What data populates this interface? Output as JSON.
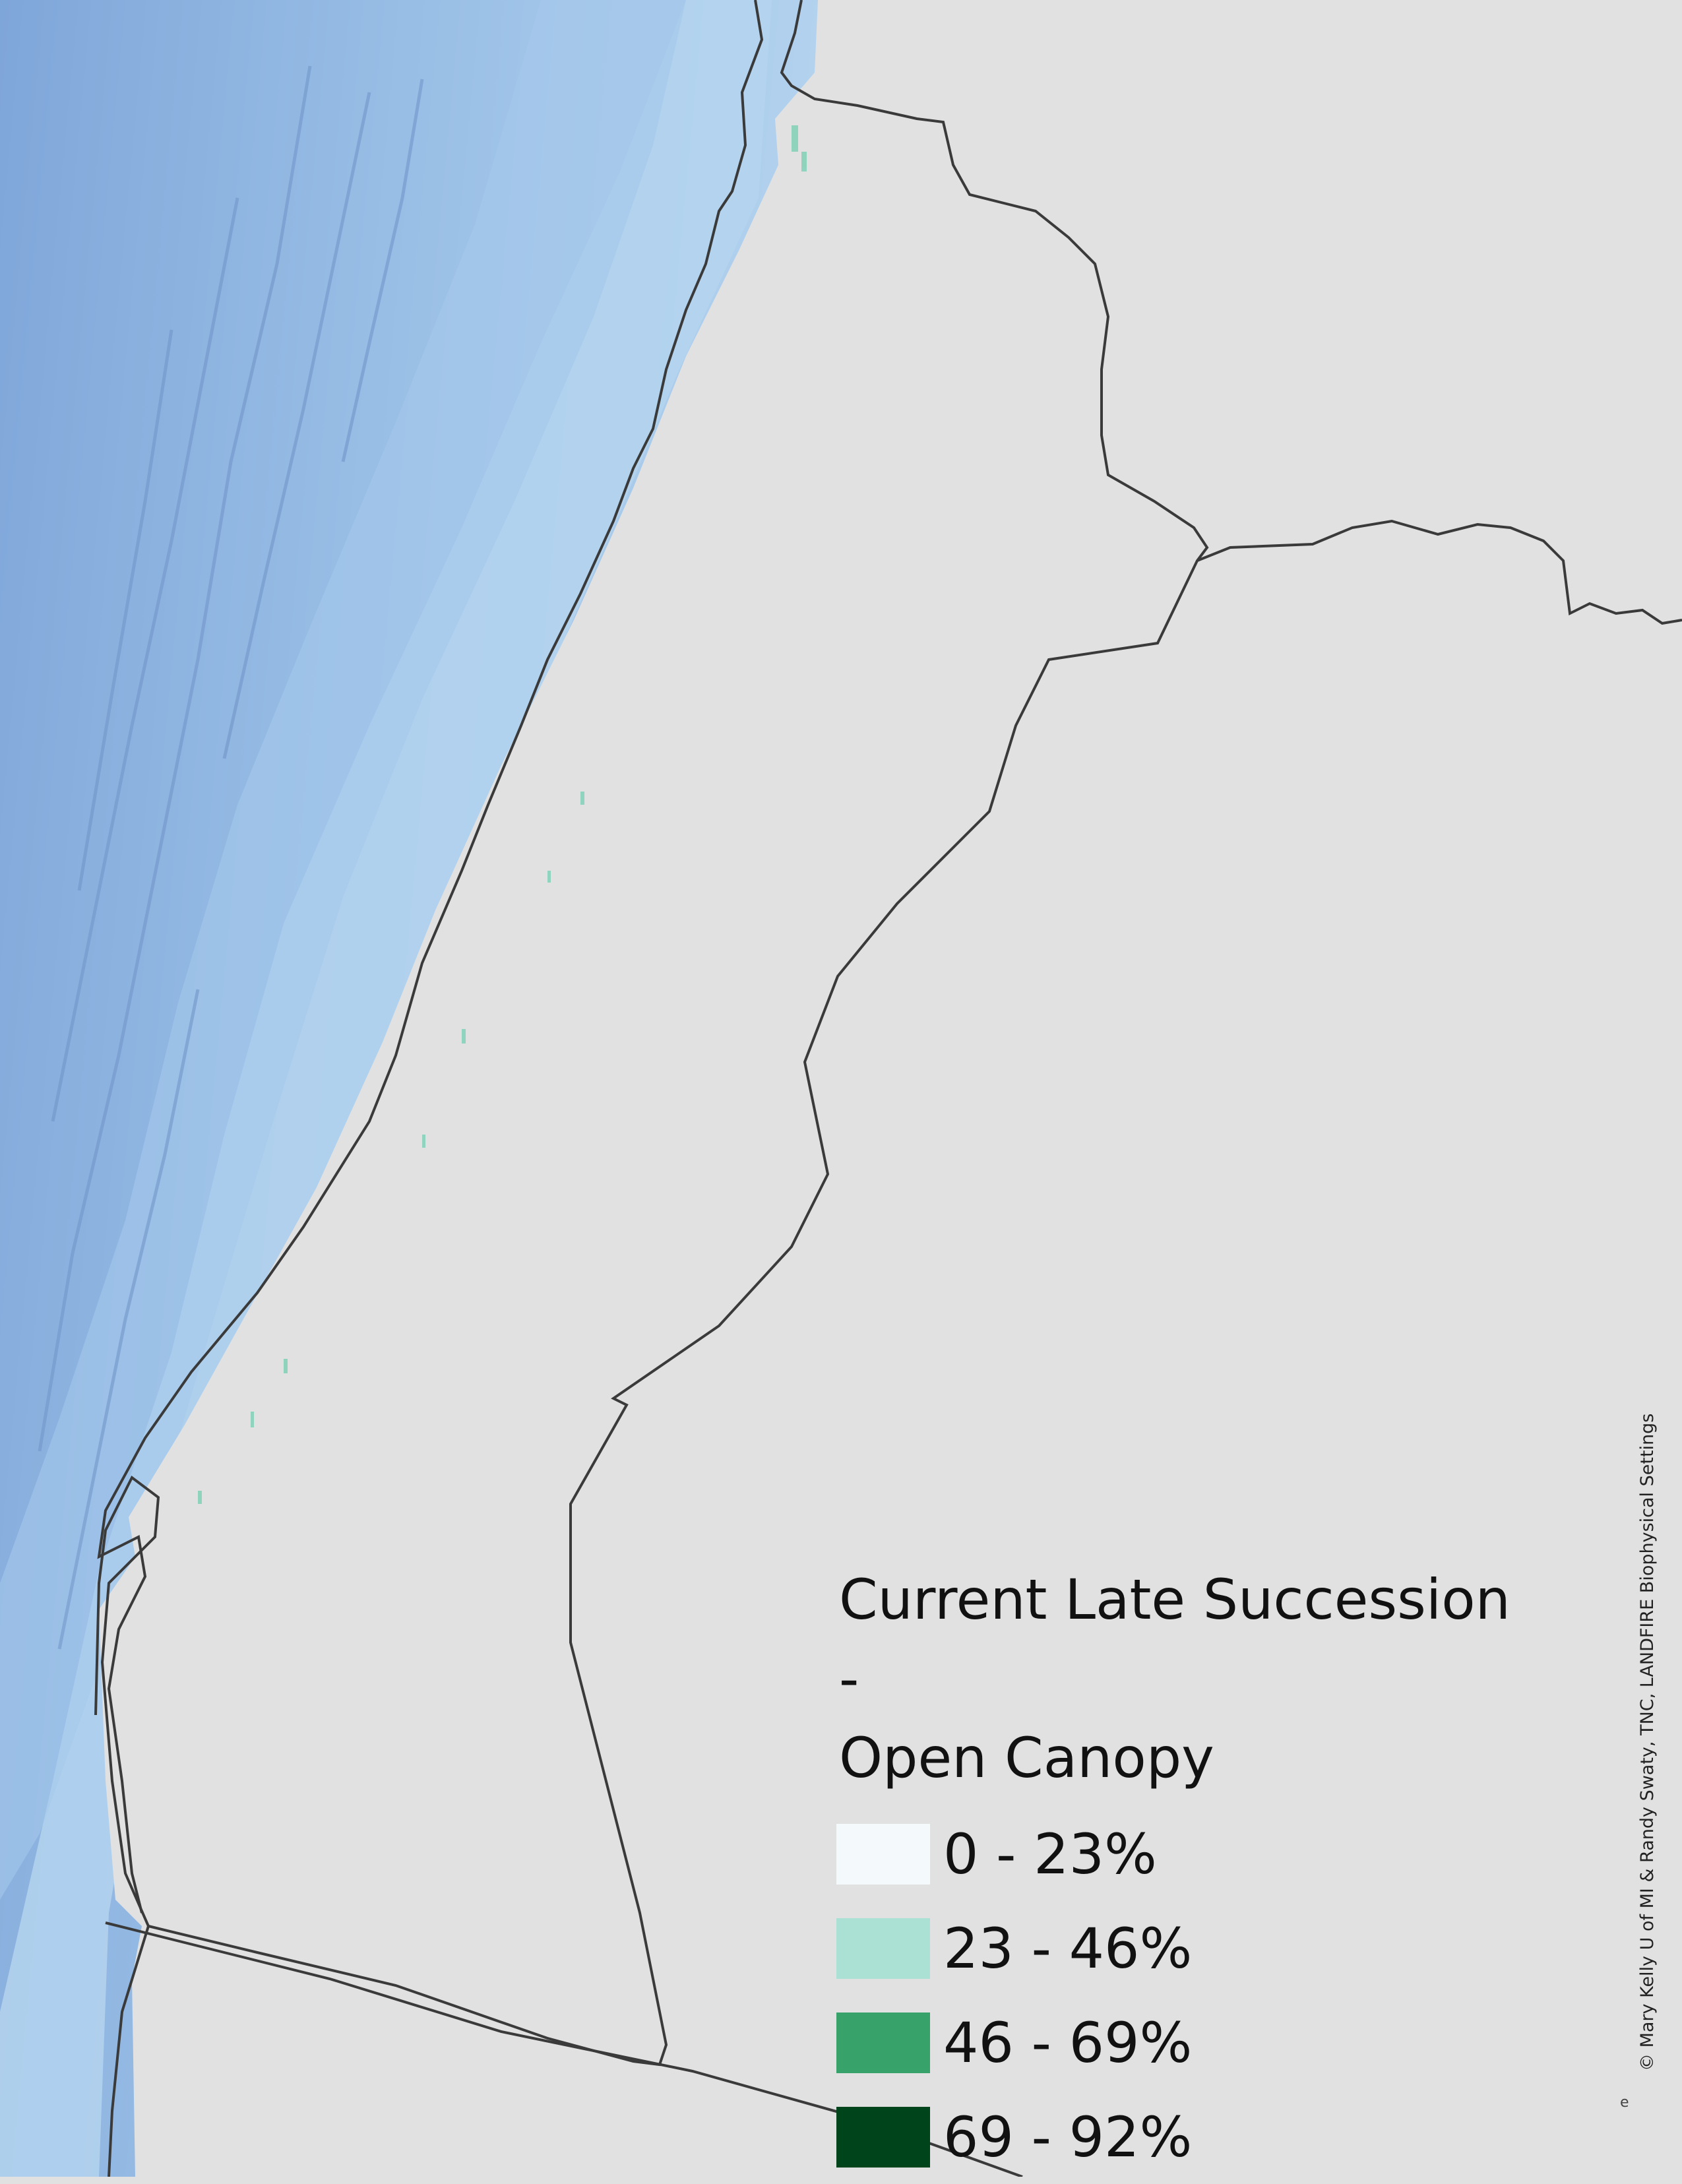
{
  "map": {
    "colors": {
      "land": "#e1e1e1",
      "ocean_shelf": "#b8d7ee",
      "ocean_deep": "#8fb5e1",
      "boundary": "#3a3a3a"
    },
    "layers": [
      "ocean-bathymetry-hillshade",
      "land",
      "region-boundaries",
      "late-succession-open-canopy-raster"
    ]
  },
  "legend": {
    "title": "Current Late Succession -\nOpen Canopy",
    "classes": [
      {
        "label": "0 - 23%",
        "color": "#f4fafb"
      },
      {
        "label": "23 - 46%",
        "color": "#abe1d5"
      },
      {
        "label": "46 - 69%",
        "color": "#37a36a"
      },
      {
        "label": "69 - 92%",
        "color": "#00441b"
      }
    ]
  },
  "credit": "© Mary Kelly U of MI & Randy Swaty, TNC, LANDFIRE Biophysical Settings",
  "corner_marker": "e"
}
